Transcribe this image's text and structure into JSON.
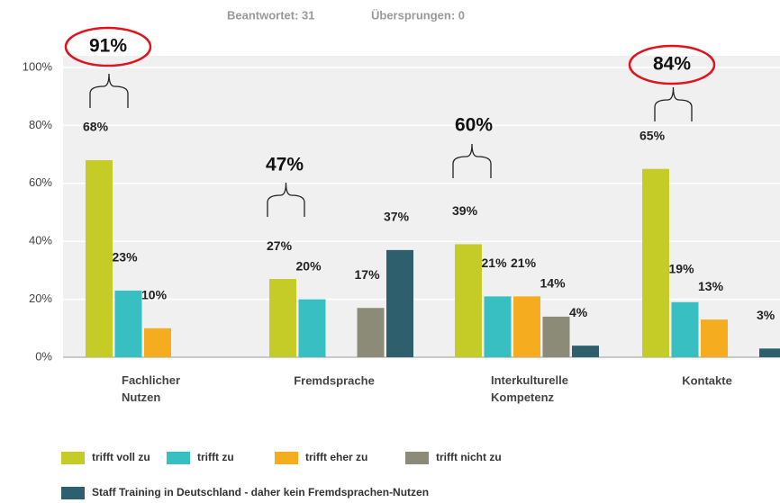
{
  "chart_data": {
    "type": "bar",
    "header": [
      "Beantwortet: 31",
      "Übersprungen: 0"
    ],
    "categories": [
      "Fachlicher Nutzen",
      "Fremdsprache",
      "Interkulturelle Kompetenz",
      "Kontakte"
    ],
    "series": [
      {
        "name": "trifft voll zu",
        "color": "#c5cb27",
        "values": [
          68,
          27,
          39,
          65
        ],
        "value_labels": [
          "68%",
          "27%",
          "39%",
          "65%"
        ]
      },
      {
        "name": "trifft zu",
        "color": "#38bfc1",
        "values": [
          23,
          20,
          21,
          19
        ],
        "value_labels": [
          "23%",
          "20%",
          "21%",
          "19%"
        ]
      },
      {
        "name": "trifft eher zu",
        "color": "#f5ac1e",
        "values": [
          10,
          null,
          21,
          13
        ],
        "value_labels": [
          "10%",
          null,
          "21%",
          "13%"
        ]
      },
      {
        "name": "trifft nicht zu",
        "color": "#8b8b77",
        "values": [
          null,
          17,
          14,
          null
        ],
        "value_labels": [
          null,
          "17%",
          "14%",
          null
        ]
      },
      {
        "name": "Staff Training in Deutschland - daher kein Fremdsprachen-Nutzen",
        "color": "#2e5f6d",
        "values": [
          null,
          37,
          4,
          3
        ],
        "value_labels": [
          null,
          "37%",
          "4%",
          "3%"
        ]
      }
    ],
    "annotations": [
      "91%",
      "47%",
      "60%",
      "84%"
    ],
    "ylim": [
      0,
      100
    ],
    "yticks": [
      {
        "value": 0,
        "label": "0%"
      },
      {
        "value": 20,
        "label": "20%"
      },
      {
        "value": 40,
        "label": "40%"
      },
      {
        "value": 60,
        "label": "60%"
      },
      {
        "value": 80,
        "label": "80%"
      },
      {
        "value": 100,
        "label": "100%"
      }
    ],
    "grid": true
  }
}
